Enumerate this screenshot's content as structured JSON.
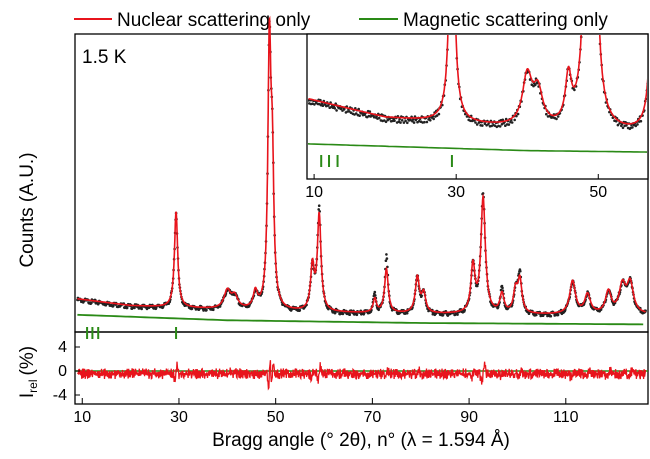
{
  "chart_data": {
    "type": "line",
    "legend": {
      "placement": "top",
      "entries": [
        {
          "label": "Nuclear scattering only",
          "color": "#e8141c"
        },
        {
          "label": "Magnetic scattering only",
          "color": "#2a8a16"
        }
      ]
    },
    "annotation": "1.5 K",
    "xlabel": "Bragg angle (° 2θ), n° (λ = 1.594 Å)",
    "ylabel_main": "Counts (A.U.)",
    "ylabel_residual": "I",
    "ylabel_residual_sub": "rel",
    "ylabel_residual_unit": "(%)",
    "xlim": [
      8.5,
      127
    ],
    "x_ticks": [
      "10",
      "30",
      "50",
      "70",
      "90",
      "110"
    ],
    "x_tick_values": [
      10,
      30,
      50,
      70,
      90,
      110
    ],
    "main_ylim": [
      0,
      1.0
    ],
    "residual_ylim": [
      -5.5,
      6.5
    ],
    "residual_ticks": [
      "4",
      "0",
      "-4"
    ],
    "residual_tick_values": [
      4,
      0,
      -4
    ],
    "nuclear_background": [
      [
        9,
        0.07
      ],
      [
        20,
        0.045
      ],
      [
        40,
        0.03
      ],
      [
        60,
        0.02
      ],
      [
        80,
        0.015
      ],
      [
        100,
        0.012
      ],
      [
        126,
        0.012
      ]
    ],
    "magnetic_background": [
      [
        9,
        0.03
      ],
      [
        40,
        0.01
      ],
      [
        80,
        0.0
      ],
      [
        126,
        -0.005
      ]
    ],
    "peaks": [
      {
        "x": 29.4,
        "height": 0.35,
        "width": 0.4
      },
      {
        "x": 40.0,
        "height": 0.065,
        "width": 0.8
      },
      {
        "x": 41.5,
        "height": 0.045,
        "width": 0.8
      },
      {
        "x": 45.8,
        "height": 0.06,
        "width": 0.5
      },
      {
        "x": 48.7,
        "height": 0.93,
        "width": 0.38
      },
      {
        "x": 49.3,
        "height": 0.47,
        "width": 0.38
      },
      {
        "x": 57.6,
        "height": 0.16,
        "width": 0.45
      },
      {
        "x": 59.0,
        "height": 0.35,
        "width": 0.45
      },
      {
        "x": 70.5,
        "height": 0.05,
        "width": 0.4
      },
      {
        "x": 72.9,
        "height": 0.16,
        "width": 0.45
      },
      {
        "x": 79.3,
        "height": 0.13,
        "width": 0.5
      },
      {
        "x": 80.6,
        "height": 0.07,
        "width": 0.5
      },
      {
        "x": 90.8,
        "height": 0.17,
        "width": 0.5
      },
      {
        "x": 92.9,
        "height": 0.42,
        "width": 0.55
      },
      {
        "x": 96.8,
        "height": 0.07,
        "width": 0.5
      },
      {
        "x": 99.6,
        "height": 0.08,
        "width": 0.5
      },
      {
        "x": 100.5,
        "height": 0.12,
        "width": 0.5
      },
      {
        "x": 111.4,
        "height": 0.12,
        "width": 0.7
      },
      {
        "x": 114.5,
        "height": 0.07,
        "width": 0.7
      },
      {
        "x": 118.8,
        "height": 0.08,
        "width": 0.7
      },
      {
        "x": 121.7,
        "height": 0.1,
        "width": 0.8
      },
      {
        "x": 123.3,
        "height": 0.11,
        "width": 0.8
      }
    ],
    "observed_excess": [
      {
        "x": 59.0,
        "extra": 0.03
      },
      {
        "x": 72.9,
        "extra": 0.05
      },
      {
        "x": 70.5,
        "extra": 0.02
      },
      {
        "x": 100.5,
        "extra": 0.03
      },
      {
        "x": 96.8,
        "extra": 0.02
      },
      {
        "x": 92.9,
        "extra": 0.02
      }
    ],
    "magnetic_ticks": [
      11.0,
      12.1,
      13.3
    ],
    "nuclear_marker": 29.4,
    "inset": {
      "xlim": [
        9,
        57
      ],
      "ylim": [
        0,
        0.13
      ],
      "x_ticks": [
        "10",
        "30",
        "50"
      ],
      "x_tick_values": [
        10,
        30,
        50
      ],
      "magnetic_ticks": [
        11.0,
        12.1,
        13.3
      ],
      "nuclear_marker": 29.4
    }
  }
}
